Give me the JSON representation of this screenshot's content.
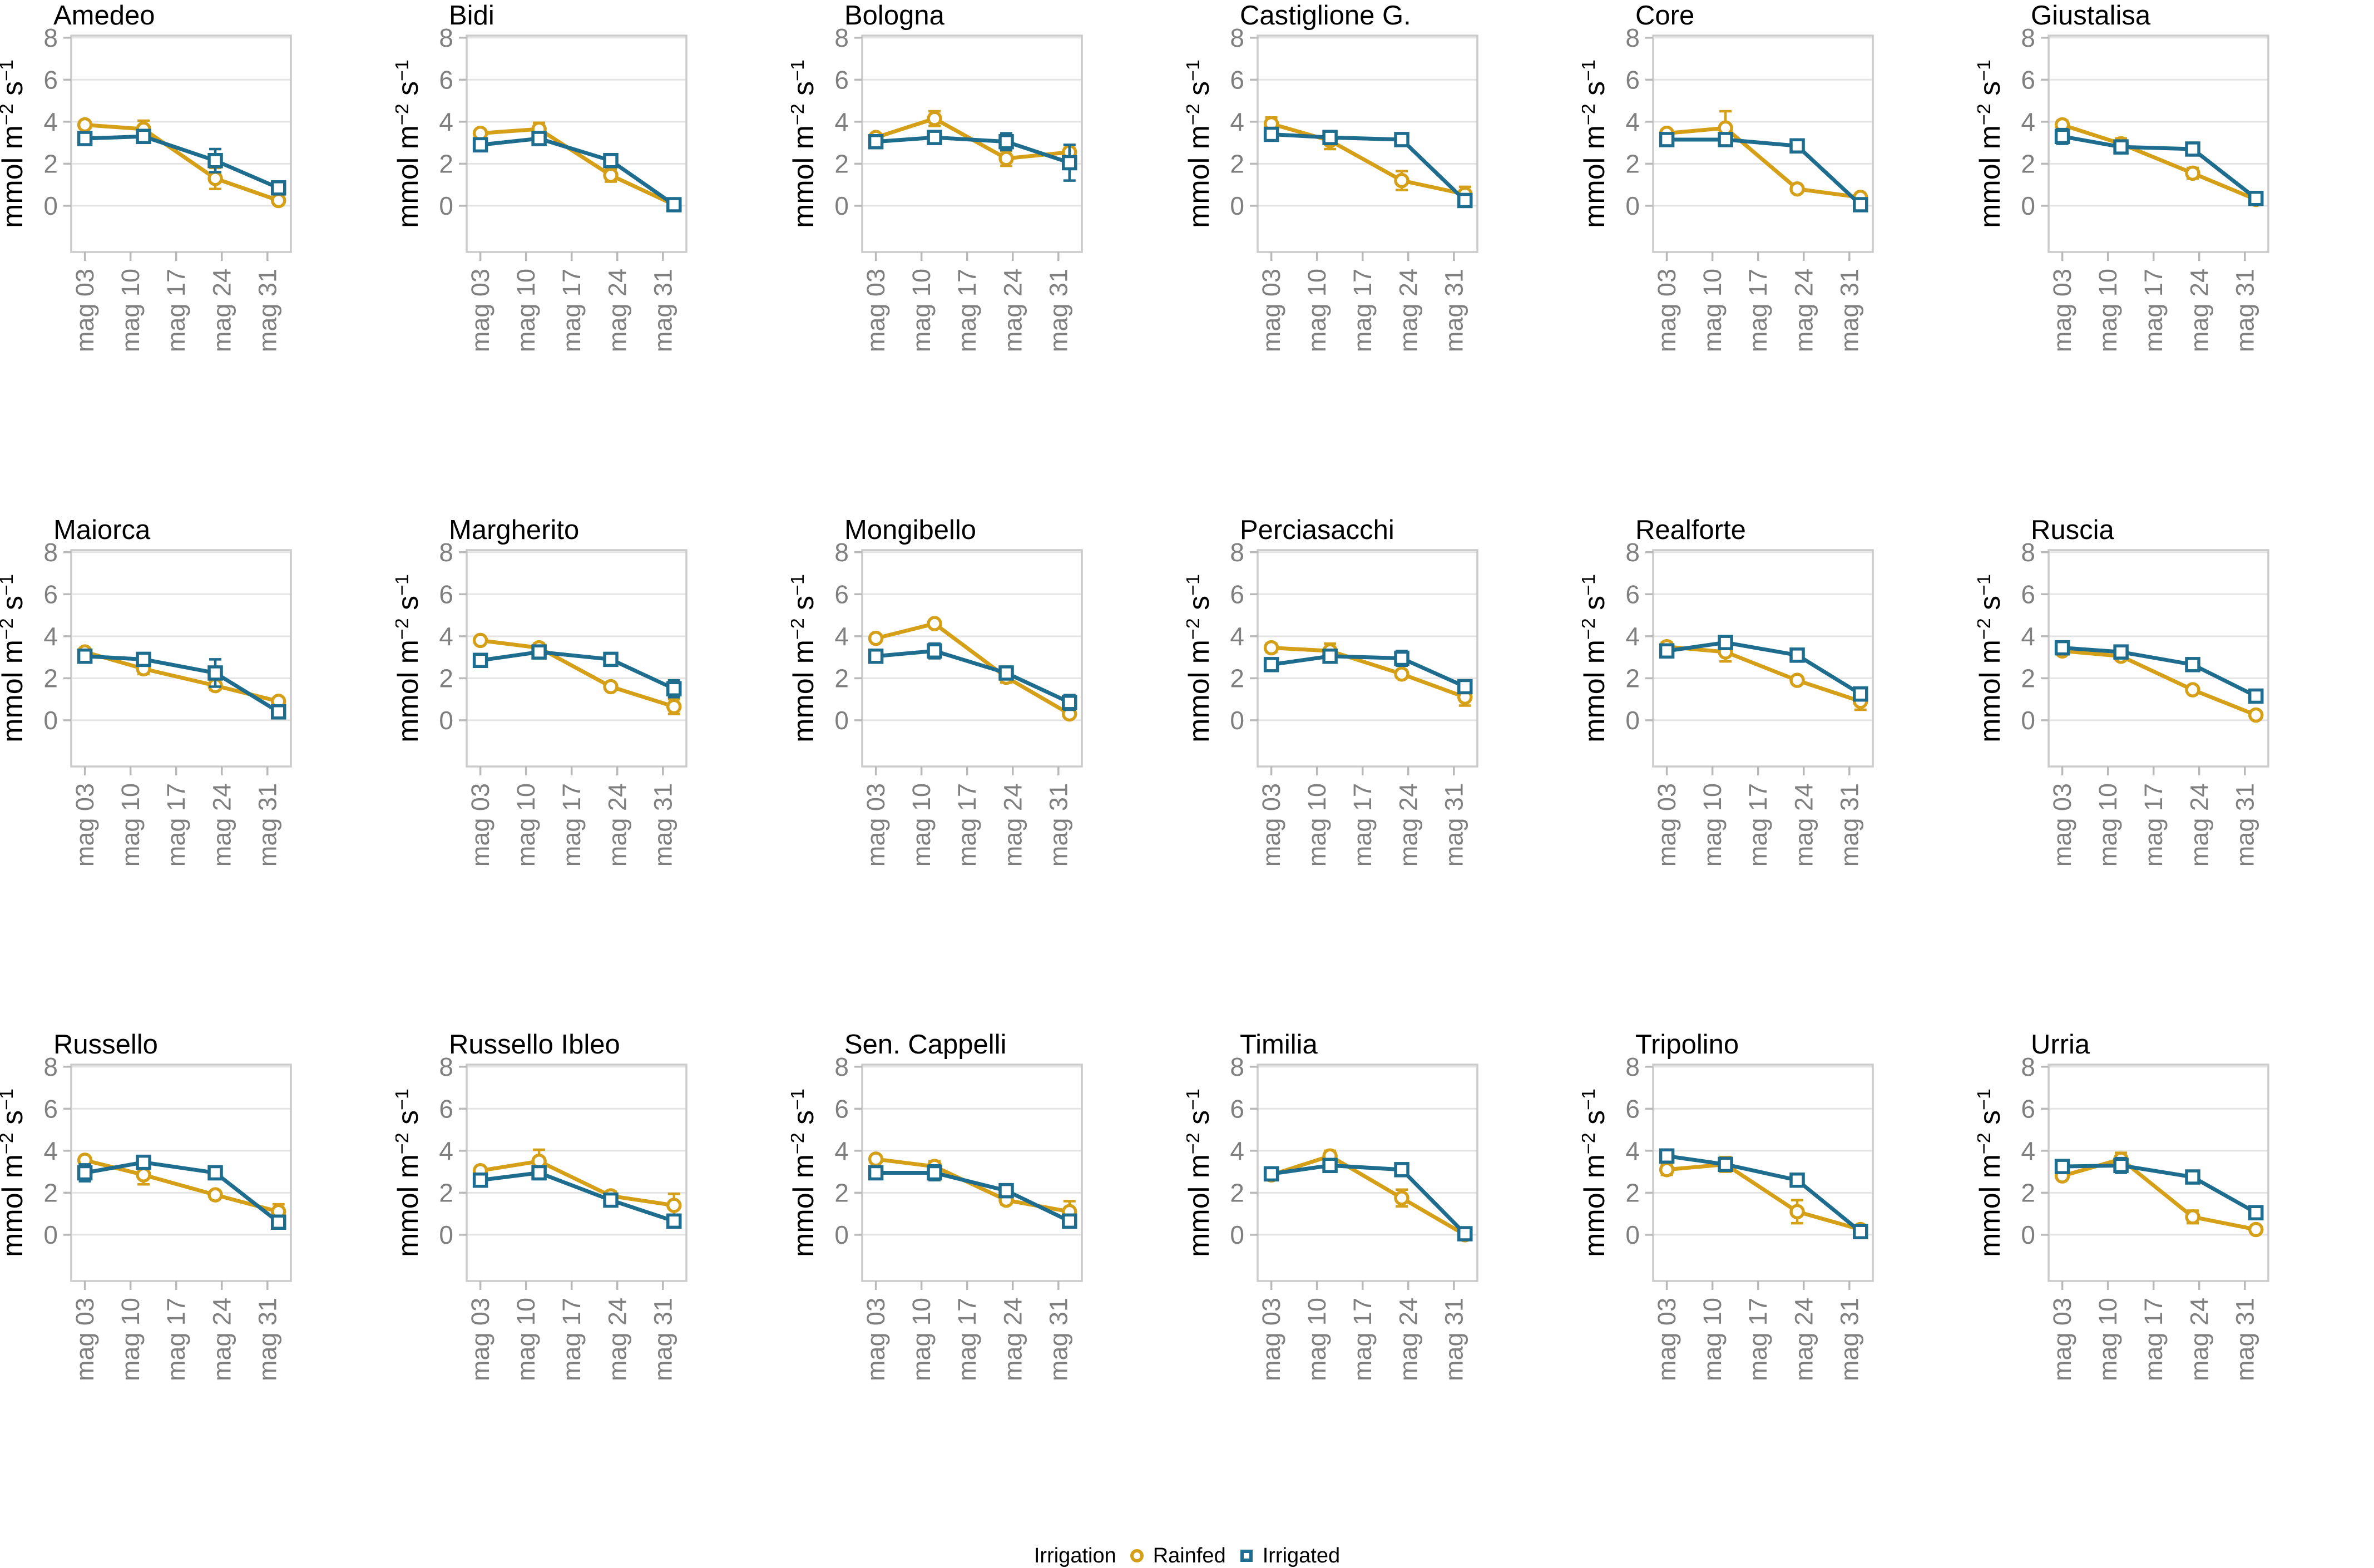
{
  "axes": {
    "x_tick_labels": [
      "mag 03",
      "mag 10",
      "mag 17",
      "mag 24",
      "mag 31"
    ],
    "x_tick_days": [
      3,
      10,
      17,
      24,
      31
    ],
    "x_point_days": [
      3,
      12,
      23,
      32.7
    ],
    "x_range": [
      0.9,
      34.6
    ],
    "y_ticks": [
      0,
      2,
      4,
      6,
      8
    ],
    "y_range": [
      -2.2,
      8.1
    ],
    "y_label_parts": [
      "mmol m",
      "−2",
      " s",
      "−1"
    ],
    "grid": "horizontal-major-only"
  },
  "style": {
    "rainfed_color": "#D5A018",
    "irrigated_color": "#1E6C8E",
    "grid_color": "#E4E4E4",
    "border_color": "#CBCBCB",
    "tick_color": "#B9B9B9",
    "tick_label_color": "#7F7F7F",
    "title_color": "#000000"
  },
  "legend": {
    "title": "Irrigation",
    "items": [
      {
        "label": "Rainfed",
        "marker": "circle",
        "color": "#D5A018"
      },
      {
        "label": "Irrigated",
        "marker": "square",
        "color": "#1E6C8E"
      }
    ]
  },
  "chart_data": [
    {
      "type": "line",
      "title": "Amedeo",
      "x": [
        3,
        12,
        23,
        32.7
      ],
      "series": [
        {
          "name": "Rainfed",
          "values": [
            3.85,
            3.65,
            1.3,
            0.25
          ],
          "errors": [
            0.1,
            0.4,
            0.5,
            0.1
          ]
        },
        {
          "name": "Irrigated",
          "values": [
            3.2,
            3.3,
            2.15,
            0.85
          ],
          "errors": [
            0.25,
            0.3,
            0.55,
            0.3
          ]
        }
      ]
    },
    {
      "type": "line",
      "title": "Bidi",
      "x": [
        3,
        12,
        23,
        32.7
      ],
      "series": [
        {
          "name": "Rainfed",
          "values": [
            3.45,
            3.65,
            1.45,
            0.05
          ],
          "errors": [
            0.15,
            0.3,
            0.3,
            0.05
          ]
        },
        {
          "name": "Irrigated",
          "values": [
            2.9,
            3.2,
            2.15,
            0.05
          ],
          "errors": [
            0.1,
            0.25,
            0.3,
            0.05
          ]
        }
      ]
    },
    {
      "type": "line",
      "title": "Bologna",
      "x": [
        3,
        12,
        23,
        32.7
      ],
      "series": [
        {
          "name": "Rainfed",
          "values": [
            3.25,
            4.15,
            2.25,
            2.55
          ],
          "errors": [
            0.15,
            0.35,
            0.35,
            0.2
          ]
        },
        {
          "name": "Irrigated",
          "values": [
            3.05,
            3.25,
            3.05,
            2.05
          ],
          "errors": [
            0.15,
            0.1,
            0.4,
            0.85
          ]
        }
      ]
    },
    {
      "type": "line",
      "title": "Castiglione G.",
      "x": [
        3,
        12,
        23,
        32.7
      ],
      "series": [
        {
          "name": "Rainfed",
          "values": [
            3.9,
            3.1,
            1.2,
            0.55
          ],
          "errors": [
            0.3,
            0.4,
            0.45,
            0.35
          ]
        },
        {
          "name": "Irrigated",
          "values": [
            3.4,
            3.25,
            3.15,
            0.25
          ],
          "errors": [
            0.15,
            0.3,
            0.3,
            0.1
          ]
        }
      ]
    },
    {
      "type": "line",
      "title": "Core",
      "x": [
        3,
        12,
        23,
        32.7
      ],
      "series": [
        {
          "name": "Rainfed",
          "values": [
            3.45,
            3.7,
            0.8,
            0.4
          ],
          "errors": [
            0.1,
            0.8,
            0.15,
            0.05
          ]
        },
        {
          "name": "Irrigated",
          "values": [
            3.15,
            3.15,
            2.85,
            0.05
          ],
          "errors": [
            0.1,
            0.1,
            0.1,
            0.05
          ]
        }
      ]
    },
    {
      "type": "line",
      "title": "Giustalisa",
      "x": [
        3,
        12,
        23,
        32.7
      ],
      "series": [
        {
          "name": "Rainfed",
          "values": [
            3.85,
            2.95,
            1.55,
            0.3
          ],
          "errors": [
            0.2,
            0.25,
            0.25,
            0.05
          ]
        },
        {
          "name": "Irrigated",
          "values": [
            3.3,
            2.8,
            2.7,
            0.35
          ],
          "errors": [
            0.35,
            0.25,
            0.2,
            0.05
          ]
        }
      ]
    },
    {
      "type": "line",
      "title": "Maiorca",
      "x": [
        3,
        12,
        23,
        32.7
      ],
      "series": [
        {
          "name": "Rainfed",
          "values": [
            3.25,
            2.45,
            1.65,
            0.9
          ],
          "errors": [
            0.1,
            0.25,
            0.2,
            0.15
          ]
        },
        {
          "name": "Irrigated",
          "values": [
            3.05,
            2.9,
            2.25,
            0.4
          ],
          "errors": [
            0.1,
            0.1,
            0.65,
            0.15
          ]
        }
      ]
    },
    {
      "type": "line",
      "title": "Margherito",
      "x": [
        3,
        12,
        23,
        32.7
      ],
      "series": [
        {
          "name": "Rainfed",
          "values": [
            3.8,
            3.45,
            1.6,
            0.65
          ],
          "errors": [
            0.1,
            0.2,
            0.15,
            0.35
          ]
        },
        {
          "name": "Irrigated",
          "values": [
            2.85,
            3.25,
            2.9,
            1.5
          ],
          "errors": [
            0.3,
            0.15,
            0.15,
            0.4
          ]
        }
      ]
    },
    {
      "type": "line",
      "title": "Mongibello",
      "x": [
        3,
        12,
        23,
        32.7
      ],
      "series": [
        {
          "name": "Rainfed",
          "values": [
            3.9,
            4.6,
            2.05,
            0.3
          ],
          "errors": [
            0.1,
            0.1,
            0.25,
            0.05
          ]
        },
        {
          "name": "Irrigated",
          "values": [
            3.05,
            3.3,
            2.25,
            0.85
          ],
          "errors": [
            0.1,
            0.35,
            0.3,
            0.35
          ]
        }
      ]
    },
    {
      "type": "line",
      "title": "Perciasacchi",
      "x": [
        3,
        12,
        23,
        32.7
      ],
      "series": [
        {
          "name": "Rainfed",
          "values": [
            3.45,
            3.3,
            2.2,
            1.1
          ],
          "errors": [
            0.2,
            0.35,
            0.1,
            0.4
          ]
        },
        {
          "name": "Irrigated",
          "values": [
            2.65,
            3.05,
            2.95,
            1.6
          ],
          "errors": [
            0.1,
            0.2,
            0.35,
            0.2
          ]
        }
      ]
    },
    {
      "type": "line",
      "title": "Realforte",
      "x": [
        3,
        12,
        23,
        32.7
      ],
      "series": [
        {
          "name": "Rainfed",
          "values": [
            3.5,
            3.25,
            1.9,
            0.9
          ],
          "errors": [
            0.2,
            0.45,
            0.15,
            0.4
          ]
        },
        {
          "name": "Irrigated",
          "values": [
            3.3,
            3.7,
            3.1,
            1.25
          ],
          "errors": [
            0.15,
            0.25,
            0.1,
            0.1
          ]
        }
      ]
    },
    {
      "type": "line",
      "title": "Ruscia",
      "x": [
        3,
        12,
        23,
        32.7
      ],
      "series": [
        {
          "name": "Rainfed",
          "values": [
            3.3,
            3.05,
            1.45,
            0.25
          ],
          "errors": [
            0.05,
            0.05,
            0.05,
            0.05
          ]
        },
        {
          "name": "Irrigated",
          "values": [
            3.45,
            3.25,
            2.65,
            1.15
          ],
          "errors": [
            0.05,
            0.05,
            0.05,
            0.05
          ]
        }
      ]
    },
    {
      "type": "line",
      "title": "Russello",
      "x": [
        3,
        12,
        23,
        32.7
      ],
      "series": [
        {
          "name": "Rainfed",
          "values": [
            3.55,
            2.85,
            1.9,
            1.1
          ],
          "errors": [
            0.1,
            0.45,
            0.1,
            0.35
          ]
        },
        {
          "name": "Irrigated",
          "values": [
            2.95,
            3.45,
            2.95,
            0.6
          ],
          "errors": [
            0.4,
            0.2,
            0.3,
            0.15
          ]
        }
      ]
    },
    {
      "type": "line",
      "title": "Russello Ibleo",
      "x": [
        3,
        12,
        23,
        32.7
      ],
      "series": [
        {
          "name": "Rainfed",
          "values": [
            3.05,
            3.5,
            1.85,
            1.4
          ],
          "errors": [
            0.1,
            0.55,
            0.2,
            0.55
          ]
        },
        {
          "name": "Irrigated",
          "values": [
            2.6,
            2.95,
            1.65,
            0.65
          ],
          "errors": [
            0.1,
            0.3,
            0.15,
            0.3
          ]
        }
      ]
    },
    {
      "type": "line",
      "title": "Sen. Cappelli",
      "x": [
        3,
        12,
        23,
        32.7
      ],
      "series": [
        {
          "name": "Rainfed",
          "values": [
            3.6,
            3.25,
            1.65,
            1.1
          ],
          "errors": [
            0.1,
            0.25,
            0.2,
            0.5
          ]
        },
        {
          "name": "Irrigated",
          "values": [
            2.95,
            2.95,
            2.1,
            0.65
          ],
          "errors": [
            0.1,
            0.35,
            0.3,
            0.3
          ]
        }
      ]
    },
    {
      "type": "line",
      "title": "Timilia",
      "x": [
        3,
        12,
        23,
        32.7
      ],
      "series": [
        {
          "name": "Rainfed",
          "values": [
            2.85,
            3.75,
            1.75,
            0.0
          ],
          "errors": [
            0.2,
            0.25,
            0.4,
            0.05
          ]
        },
        {
          "name": "Irrigated",
          "values": [
            2.9,
            3.3,
            3.1,
            0.05
          ],
          "errors": [
            0.1,
            0.15,
            0.1,
            0.05
          ]
        }
      ]
    },
    {
      "type": "line",
      "title": "Tripolino",
      "x": [
        3,
        12,
        23,
        32.7
      ],
      "series": [
        {
          "name": "Rainfed",
          "values": [
            3.1,
            3.35,
            1.1,
            0.25
          ],
          "errors": [
            0.25,
            0.35,
            0.55,
            0.05
          ]
        },
        {
          "name": "Irrigated",
          "values": [
            3.75,
            3.35,
            2.6,
            0.15
          ],
          "errors": [
            0.15,
            0.3,
            0.1,
            0.05
          ]
        }
      ]
    },
    {
      "type": "line",
      "title": "Urria",
      "x": [
        3,
        12,
        23,
        32.7
      ],
      "series": [
        {
          "name": "Rainfed",
          "values": [
            2.8,
            3.6,
            0.85,
            0.25
          ],
          "errors": [
            0.1,
            0.3,
            0.3,
            0.05
          ]
        },
        {
          "name": "Irrigated",
          "values": [
            3.25,
            3.3,
            2.75,
            1.05
          ],
          "errors": [
            0.25,
            0.35,
            0.1,
            0.3
          ]
        }
      ]
    }
  ]
}
